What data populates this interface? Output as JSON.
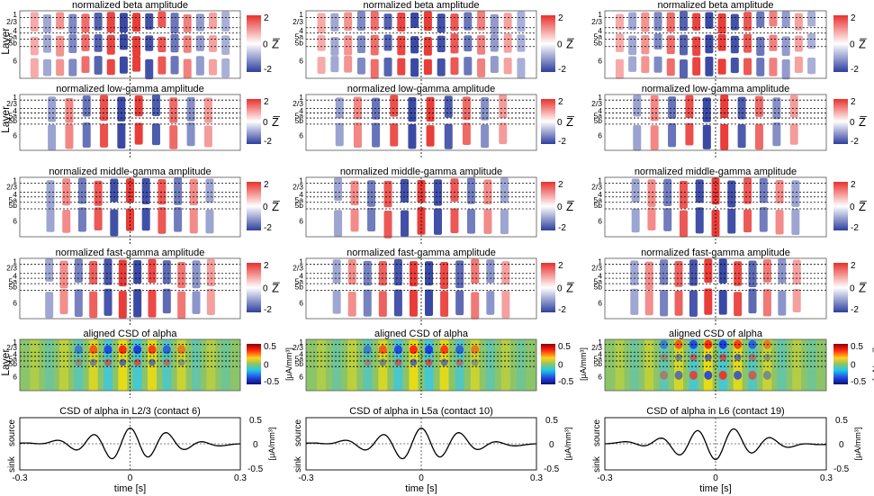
{
  "figure": {
    "layer_axis_label": "Layer",
    "layer_labels": [
      "1",
      "2/3",
      "4",
      "5a",
      "5b",
      "6"
    ],
    "colorbar_amp": {
      "max": "2",
      "mid": "0",
      "min": "-2",
      "unit": "Z̅"
    },
    "colorbar_csd": {
      "max": "0.5",
      "mid": "0",
      "min": "-0.5",
      "unit": "[μA/mm³]"
    },
    "colors": {
      "amp_neg": "#2e3f9e",
      "amp_pos": "#e8312d",
      "csd_low": "#1a2aa8",
      "csd_bg": "#8cc46a",
      "csd_high": "#e01e1e",
      "grid_line": "#000000"
    },
    "time_axis": {
      "label": "time [s]",
      "ticks": [
        "-0.3",
        "0",
        "0.3"
      ]
    },
    "trace_axis": {
      "source": "source",
      "sink": "sink",
      "unit": "[μA/mm³]",
      "ticks": [
        "0.5",
        "0",
        "-0.5"
      ]
    },
    "rows": [
      {
        "titles": [
          "normalized beta amplitude",
          "normalized beta amplitude",
          "normalized beta amplitude"
        ]
      },
      {
        "titles": [
          "normalized low-gamma amplitude",
          "normalized low-gamma amplitude",
          "normalized low-gamma amplitude"
        ]
      },
      {
        "titles": [
          "normalized middle-gamma amplitude",
          "normalized middle-gamma amplitude",
          "normalized middle-gamma amplitude"
        ]
      },
      {
        "titles": [
          "normalized fast-gamma amplitude",
          "normalized fast-gamma amplitude",
          "normalized fast-gamma amplitude"
        ]
      },
      {
        "titles": [
          "aligned CSD of alpha",
          "aligned CSD of alpha",
          "aligned CSD of alpha"
        ]
      },
      {
        "titles": [
          "CSD of alpha in L2/3 (contact 6)",
          "CSD of alpha in L5a (contact 10)",
          "CSD of alpha in L6 (contact 19)"
        ]
      }
    ]
  },
  "chart_data": [
    {
      "type": "heatmap",
      "title": "normalized beta amplitude",
      "ylabel": "Layer",
      "y_categories": [
        "1",
        "2/3",
        "4",
        "5a",
        "5b",
        "6"
      ],
      "colorbar_range": [
        -2,
        2
      ],
      "colorbar_label": "Z̅",
      "columns": 3
    },
    {
      "type": "heatmap",
      "title": "normalized low-gamma amplitude",
      "ylabel": "Layer",
      "y_categories": [
        "1",
        "2/3",
        "4",
        "5a",
        "5b",
        "6"
      ],
      "colorbar_range": [
        -2,
        2
      ],
      "colorbar_label": "Z̅",
      "columns": 3
    },
    {
      "type": "heatmap",
      "title": "normalized middle-gamma amplitude",
      "ylabel": "Layer",
      "y_categories": [
        "1",
        "2/3",
        "4",
        "5a",
        "5b",
        "6"
      ],
      "colorbar_range": [
        -2,
        2
      ],
      "colorbar_label": "Z̅",
      "columns": 3
    },
    {
      "type": "heatmap",
      "title": "normalized fast-gamma amplitude",
      "ylabel": "Layer",
      "y_categories": [
        "1",
        "2/3",
        "4",
        "5a",
        "5b",
        "6"
      ],
      "colorbar_range": [
        -2,
        2
      ],
      "colorbar_label": "Z̅",
      "columns": 3
    },
    {
      "type": "heatmap",
      "title": "aligned CSD of alpha",
      "ylabel": "Layer",
      "y_categories": [
        "1",
        "2/3",
        "4",
        "5a",
        "5b",
        "6"
      ],
      "colorbar_range": [
        -0.5,
        0.5
      ],
      "colorbar_label": "[μA/mm³]",
      "columns": 3
    },
    {
      "type": "line",
      "titles": [
        "CSD of alpha in L2/3 (contact 6)",
        "CSD of alpha in L5a (contact 10)",
        "CSD of alpha in L6 (contact 19)"
      ],
      "xlabel": "time [s]",
      "xlim": [
        -0.3,
        0.3
      ],
      "ylim": [
        -0.5,
        0.5
      ],
      "ylabel": "[μA/mm³]",
      "oscillation_hz": 10,
      "peak_amplitude": 0.3
    }
  ]
}
